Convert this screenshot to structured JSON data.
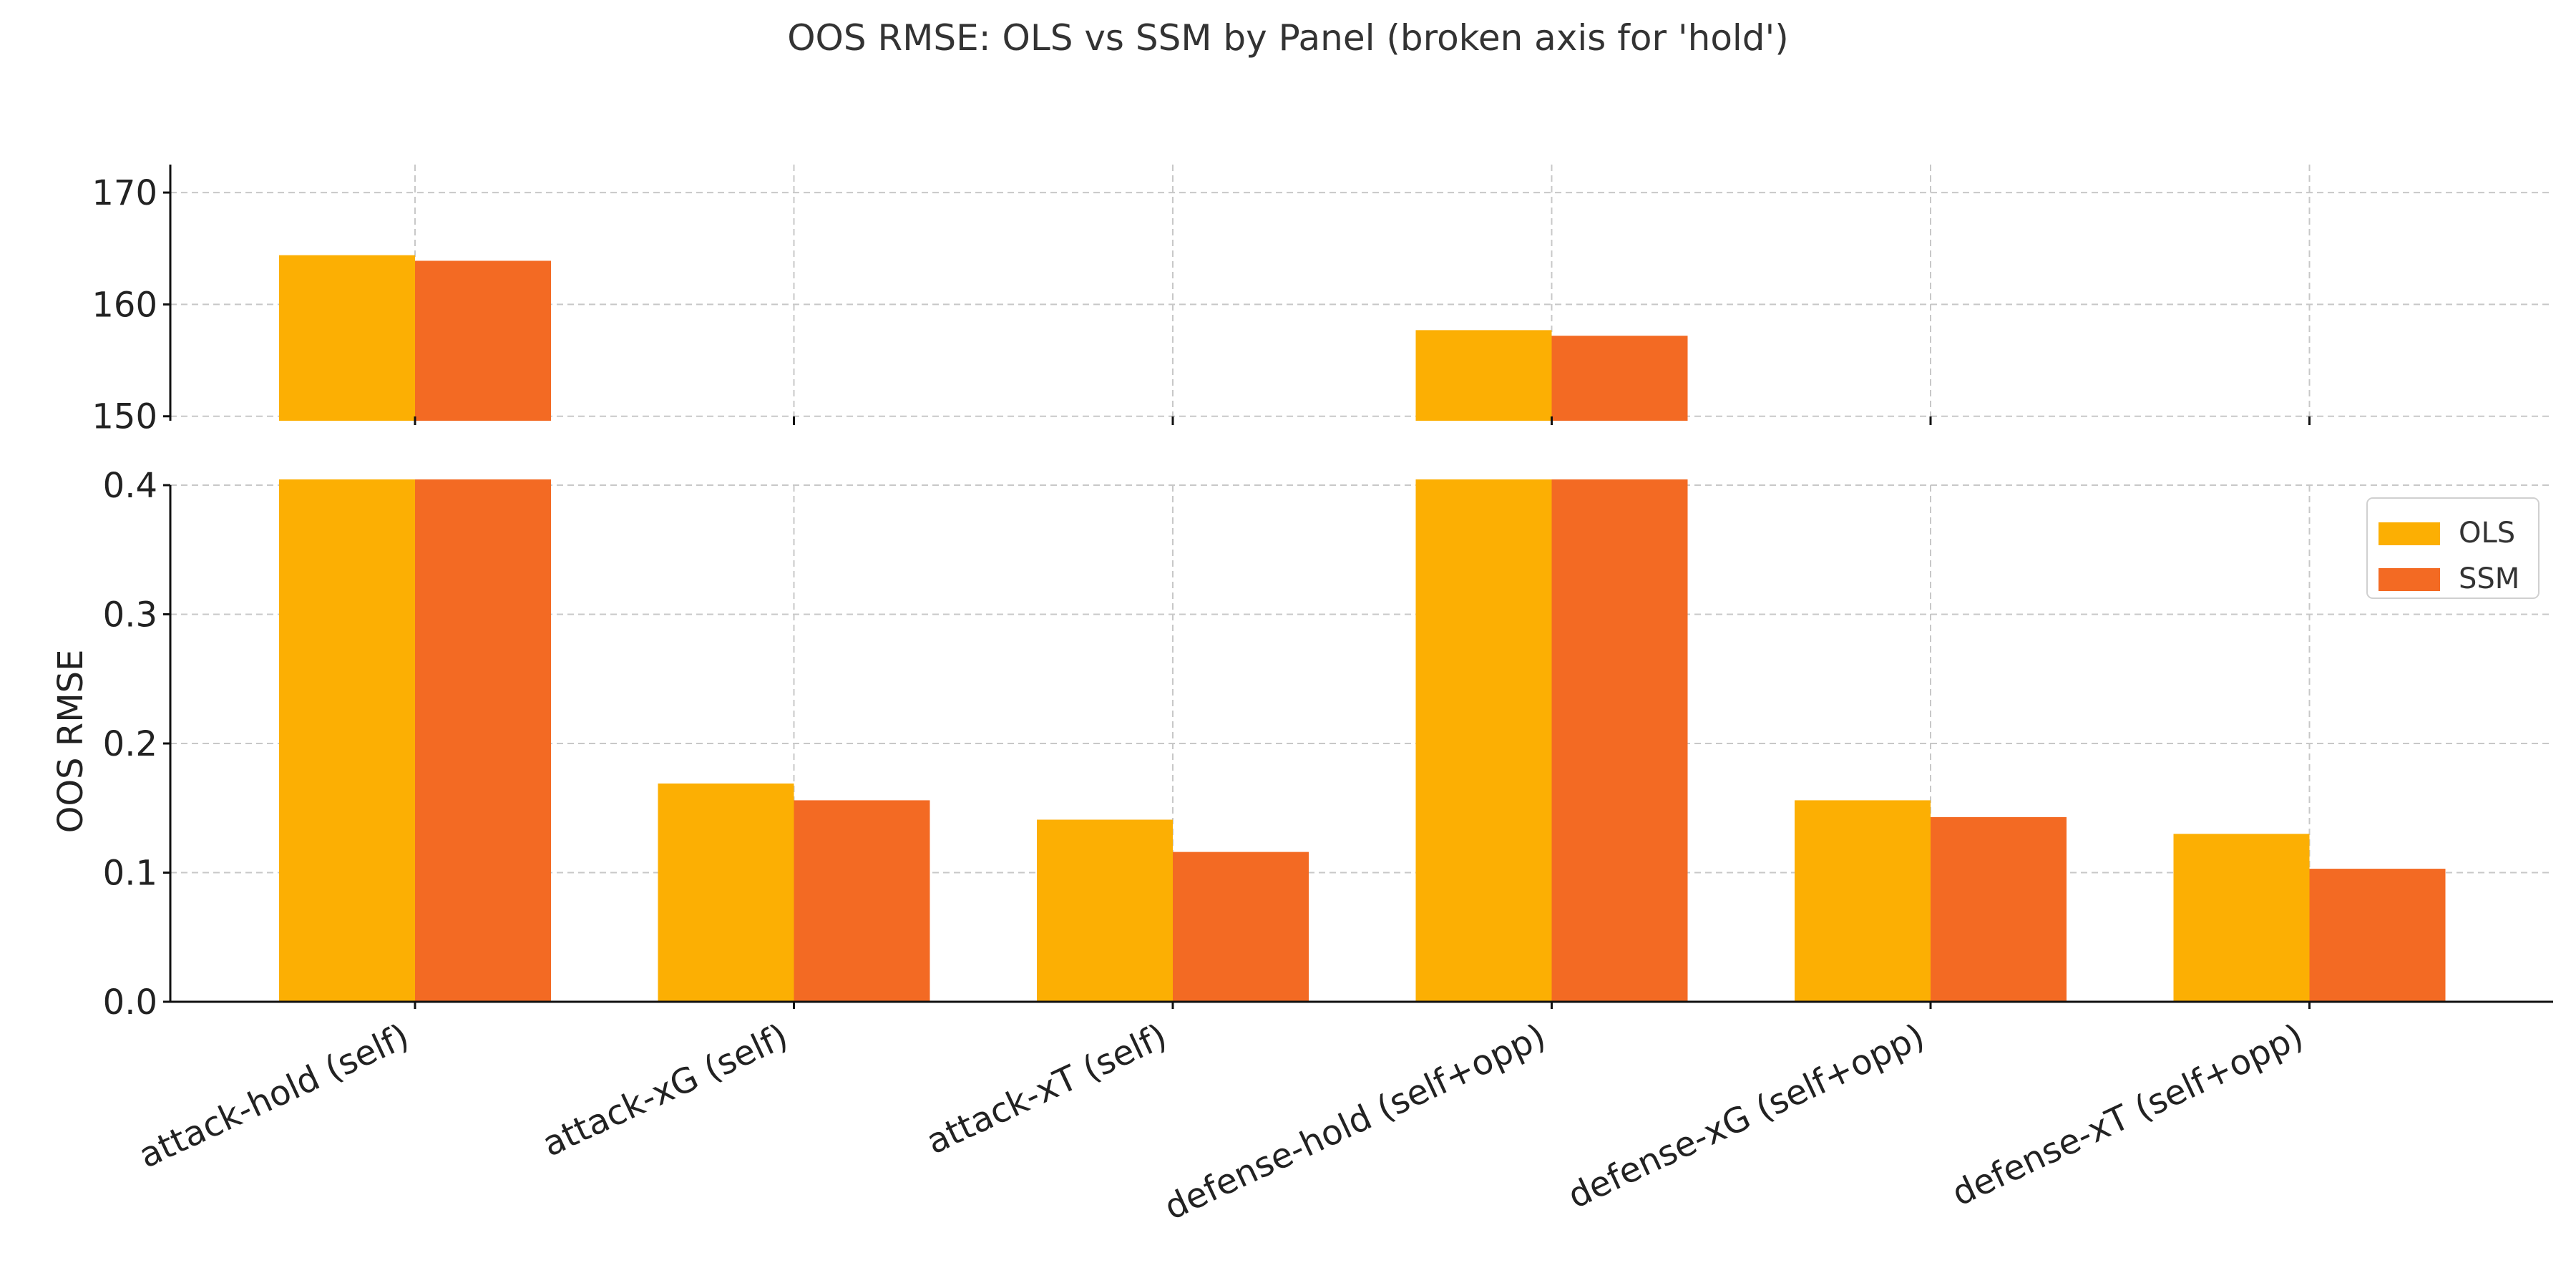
{
  "chart_data": {
    "type": "bar",
    "title": "OOS RMSE: OLS vs SSM by Panel (broken axis for 'hold')",
    "ylabel": "OOS RMSE",
    "xlabel": "",
    "categories": [
      "attack-hold (self)",
      "attack-xG (self)",
      "attack-xT (self)",
      "defense-hold (self+opp)",
      "defense-xG (self+opp)",
      "defense-xT (self+opp)"
    ],
    "series": [
      {
        "name": "OLS",
        "color": "#FCAF03",
        "values": [
          164.4,
          0.169,
          0.141,
          157.7,
          0.156,
          0.13
        ]
      },
      {
        "name": "SSM",
        "color": "#F36A23",
        "values": [
          163.9,
          0.156,
          0.116,
          157.2,
          0.143,
          0.103
        ]
      }
    ],
    "broken_axis": {
      "upper": {
        "ylim": [
          149.6,
          172.5
        ],
        "ticks": [
          "150",
          "160",
          "170"
        ]
      },
      "lower": {
        "ylim": [
          0.0,
          0.4
        ],
        "ticks": [
          "0.0",
          "0.1",
          "0.2",
          "0.3",
          "0.4"
        ]
      }
    },
    "grid": true,
    "legend_position": "right"
  }
}
